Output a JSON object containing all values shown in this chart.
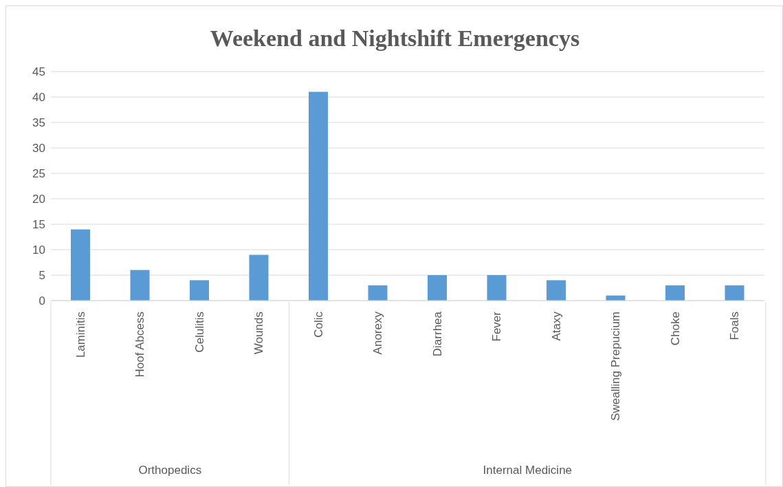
{
  "chart_data": {
    "type": "bar",
    "title": "Weekend and Nightshift Emergencys",
    "categories": [
      "Laminitis",
      "Hoof Abcess",
      "Celulitis",
      "Wounds",
      "Colic",
      "Anorexy",
      "Diarrhea",
      "Fever",
      "Ataxy",
      "Swealling Prepucium",
      "Choke",
      "Foals"
    ],
    "values": [
      14,
      6,
      4,
      9,
      41,
      3,
      5,
      5,
      4,
      1,
      3,
      3
    ],
    "color": "#5b9bd5",
    "ylim": [
      0,
      45
    ],
    "yticks": [
      0,
      5,
      10,
      15,
      20,
      25,
      30,
      35,
      40,
      45
    ],
    "grid": "y",
    "legend": false,
    "annotations": [
      "Orthopedics",
      "Internal Medicine"
    ]
  }
}
